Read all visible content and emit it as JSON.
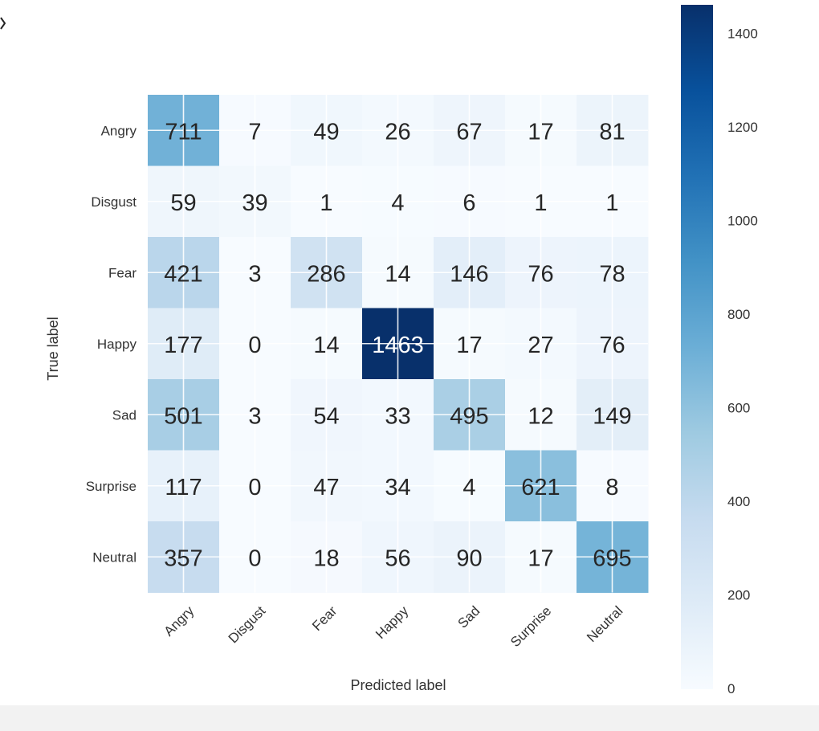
{
  "chart_data": {
    "type": "heatmap",
    "title": "",
    "xlabel": "Predicted label",
    "ylabel": "True label",
    "x_categories": [
      "Angry",
      "Disgust",
      "Fear",
      "Happy",
      "Sad",
      "Surprise",
      "Neutral"
    ],
    "y_categories": [
      "Angry",
      "Disgust",
      "Fear",
      "Happy",
      "Sad",
      "Surprise",
      "Neutral"
    ],
    "values": [
      [
        711,
        7,
        49,
        26,
        67,
        17,
        81
      ],
      [
        59,
        39,
        1,
        4,
        6,
        1,
        1
      ],
      [
        421,
        3,
        286,
        14,
        146,
        76,
        78
      ],
      [
        177,
        0,
        14,
        1463,
        17,
        27,
        76
      ],
      [
        501,
        3,
        54,
        33,
        495,
        12,
        149
      ],
      [
        117,
        0,
        47,
        34,
        4,
        621,
        8
      ],
      [
        357,
        0,
        18,
        56,
        90,
        17,
        695
      ]
    ],
    "colormap": "Blues",
    "colorbar": {
      "min": 0,
      "max": 1463,
      "ticks": [
        0,
        200,
        400,
        600,
        800,
        1000,
        1200,
        1400
      ]
    },
    "grid": true,
    "x_tick_rotation_deg": 45
  }
}
